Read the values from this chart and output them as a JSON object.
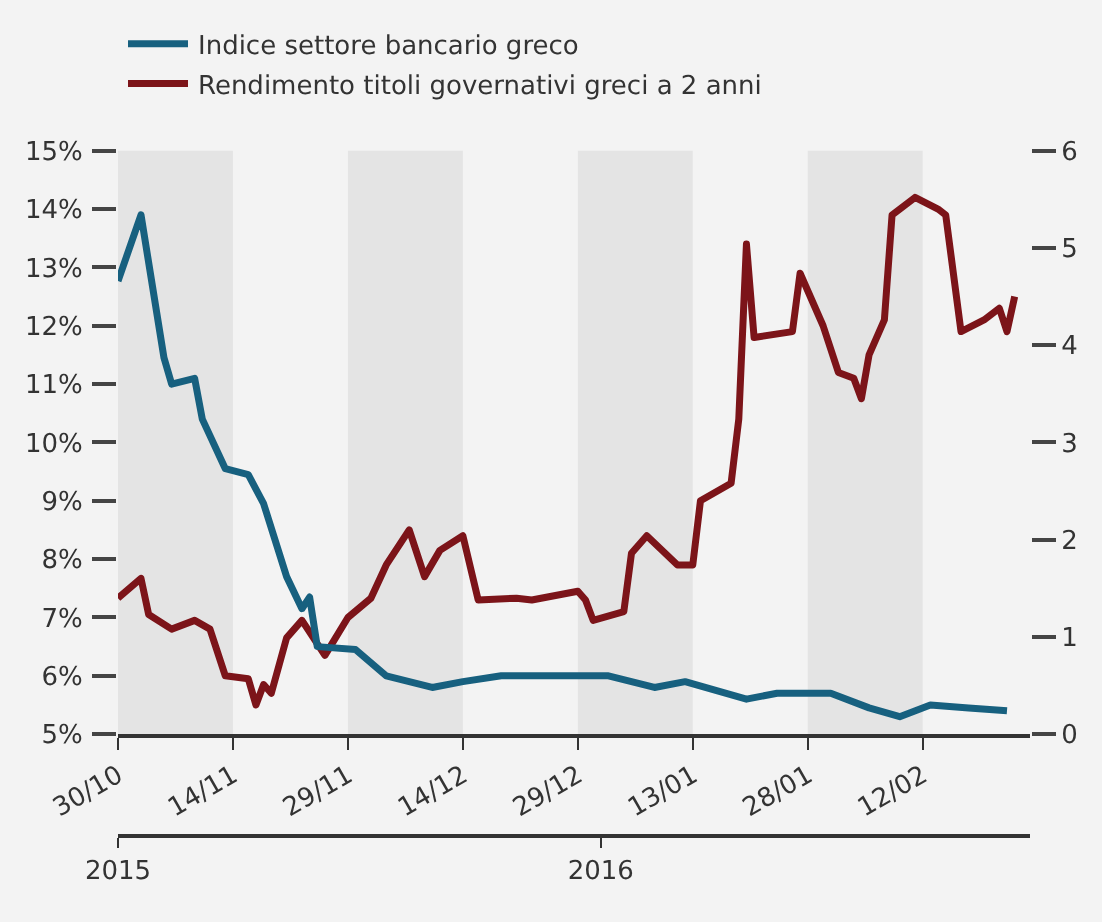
{
  "chart_data": {
    "type": "line",
    "xlim": [
      "2015-10-30",
      "2016-02-26"
    ],
    "xticks": [
      {
        "value": "2015-10-30",
        "label": "30/10"
      },
      {
        "value": "2015-11-14",
        "label": "14/11"
      },
      {
        "value": "2015-11-29",
        "label": "29/11"
      },
      {
        "value": "2015-12-14",
        "label": "14/12"
      },
      {
        "value": "2015-12-29",
        "label": "29/12"
      },
      {
        "value": "2016-01-13",
        "label": "13/01"
      },
      {
        "value": "2016-01-28",
        "label": "28/01"
      },
      {
        "value": "2016-02-12",
        "label": "12/02"
      }
    ],
    "x2lim": [
      "2015-10-30",
      "2016-02-26"
    ],
    "x2ticks": [
      {
        "value": "2015-10-30",
        "label": "2015"
      },
      {
        "value": "2016-01-01",
        "label": "2016"
      }
    ],
    "ylim": [
      5,
      15
    ],
    "yticks": [
      {
        "value": 5,
        "label": "5%"
      },
      {
        "value": 6,
        "label": "6%"
      },
      {
        "value": 7,
        "label": "7%"
      },
      {
        "value": 8,
        "label": "8%"
      },
      {
        "value": 9,
        "label": "9%"
      },
      {
        "value": 10,
        "label": "10%"
      },
      {
        "value": 11,
        "label": "11%"
      },
      {
        "value": 12,
        "label": "12%"
      },
      {
        "value": 13,
        "label": "13%"
      },
      {
        "value": 14,
        "label": "14%"
      },
      {
        "value": 15,
        "label": "15%"
      }
    ],
    "y2lim": [
      0,
      6
    ],
    "y2ticks": [
      0,
      1,
      2,
      3,
      4,
      5,
      6
    ],
    "grid": false,
    "legend": "top left",
    "bands": [
      {
        "axis": "x",
        "from": "2015-10-30",
        "to": "2015-11-14",
        "color": "#e4e4e4"
      },
      {
        "axis": "x",
        "from": "2015-11-29",
        "to": "2015-12-14",
        "color": "#e4e4e4"
      },
      {
        "axis": "x",
        "from": "2015-12-29",
        "to": "2016-01-13",
        "color": "#e4e4e4"
      },
      {
        "axis": "x",
        "from": "2016-01-28",
        "to": "2016-02-12",
        "color": "#e4e4e4"
      }
    ],
    "series": [
      {
        "name": "Indice settore bancario greco",
        "color": "#17607f",
        "axis": "y2",
        "x": [
          "2015-10-30",
          "2015-11-02",
          "2015-11-05",
          "2015-11-06",
          "2015-11-09",
          "2015-11-10",
          "2015-11-13",
          "2015-11-16",
          "2015-11-18",
          "2015-11-21",
          "2015-11-23",
          "2015-11-24",
          "2015-11-25",
          "2015-11-30",
          "2015-12-04",
          "2015-12-10",
          "2015-12-14",
          "2015-12-19",
          "2015-12-27",
          "2016-01-02",
          "2016-01-08",
          "2016-01-12",
          "2016-01-16",
          "2016-01-20",
          "2016-01-24",
          "2016-01-31",
          "2016-02-05",
          "2016-02-09",
          "2016-02-13",
          "2016-02-18",
          "2016-02-23"
        ],
        "values": [
          4.66,
          5.34,
          3.87,
          3.6,
          3.66,
          3.24,
          2.73,
          2.67,
          2.37,
          1.62,
          1.29,
          1.41,
          0.9,
          0.87,
          0.6,
          0.48,
          0.54,
          0.6,
          0.6,
          0.6,
          0.48,
          0.54,
          0.45,
          0.36,
          0.42,
          0.42,
          0.27,
          0.18,
          0.3,
          0.27,
          0.24
        ]
      },
      {
        "name": "Rendimento titoli governativi greci a 2 anni",
        "color": "#7c1419",
        "x": [
          "2015-10-30",
          "2015-11-02",
          "2015-11-03",
          "2015-11-06",
          "2015-11-09",
          "2015-11-11",
          "2015-11-13",
          "2015-11-16",
          "2015-11-17",
          "2015-11-18",
          "2015-11-19",
          "2015-11-21",
          "2015-11-23",
          "2015-11-26",
          "2015-11-29",
          "2015-12-02",
          "2015-12-04",
          "2015-12-07",
          "2015-12-09",
          "2015-12-11",
          "2015-12-14",
          "2015-12-16",
          "2015-12-21",
          "2015-12-23",
          "2015-12-29",
          "2015-12-30",
          "2015-12-31",
          "2016-01-04",
          "2016-01-05",
          "2016-01-07",
          "2016-01-11",
          "2016-01-13",
          "2016-01-14",
          "2016-01-18",
          "2016-01-19",
          "2016-01-20",
          "2016-01-21",
          "2016-01-26",
          "2016-01-27",
          "2016-01-30",
          "2016-02-01",
          "2016-02-03",
          "2016-02-04",
          "2016-02-05",
          "2016-02-07",
          "2016-02-08",
          "2016-02-11",
          "2016-02-14",
          "2016-02-15",
          "2016-02-17",
          "2016-02-20",
          "2016-02-22",
          "2016-02-23",
          "2016-02-24"
        ],
        "values": [
          7.33,
          7.67,
          7.05,
          6.8,
          6.95,
          6.8,
          6.0,
          5.95,
          5.5,
          5.85,
          5.7,
          6.65,
          6.95,
          6.35,
          7.0,
          7.33,
          7.9,
          8.5,
          7.7,
          8.15,
          8.4,
          7.3,
          7.33,
          7.3,
          7.45,
          7.3,
          6.95,
          7.1,
          8.1,
          8.4,
          7.9,
          7.9,
          9.0,
          9.3,
          10.4,
          13.4,
          11.8,
          11.9,
          12.9,
          12.0,
          11.2,
          11.1,
          10.75,
          11.5,
          12.1,
          13.9,
          14.2,
          14.0,
          13.9,
          11.9,
          12.1,
          12.3,
          11.9,
          12.5
        ]
      }
    ]
  }
}
